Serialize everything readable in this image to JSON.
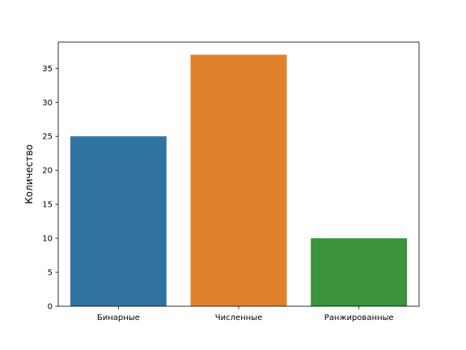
{
  "chart_data": {
    "type": "bar",
    "title": "",
    "xlabel": "",
    "ylabel": "Количество",
    "categories": [
      "Бинарные",
      "Численные",
      "Ранжированные"
    ],
    "values": [
      25,
      37,
      10
    ],
    "colors": [
      "#3274a1",
      "#e1812c",
      "#3a923a"
    ],
    "ylim": [
      0,
      38.85
    ],
    "yticks": [
      0,
      5,
      10,
      15,
      20,
      25,
      30,
      35
    ],
    "grid": false,
    "legend": "none"
  }
}
